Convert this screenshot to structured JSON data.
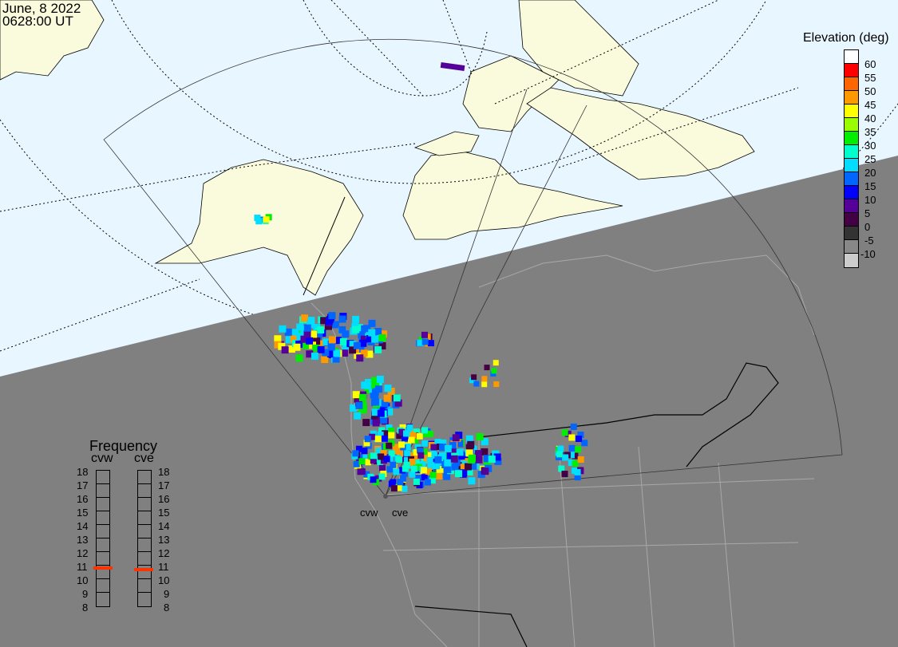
{
  "header": {
    "date": "June, 8 2022",
    "time": "0628:00 UT"
  },
  "legend": {
    "title": "Elevation (deg)",
    "colors": [
      "#ffffff",
      "#ff0000",
      "#ff6600",
      "#ff9900",
      "#ffff00",
      "#99ff00",
      "#00ee00",
      "#00ffcc",
      "#00ddff",
      "#0066ff",
      "#0000ff",
      "#550099",
      "#440044",
      "#333333",
      "#888888",
      "#cccccc"
    ],
    "labels": [
      "60",
      "55",
      "50",
      "45",
      "40",
      "35",
      "30",
      "25",
      "20",
      "15",
      "10",
      "5",
      "0",
      "-5",
      "-10"
    ]
  },
  "frequency": {
    "title": "Frequency",
    "radars": [
      {
        "name": "cvw",
        "value_mhz": 10.8
      },
      {
        "name": "cve",
        "value_mhz": 10.7
      }
    ],
    "ticks": [
      "18",
      "17",
      "16",
      "15",
      "14",
      "13",
      "12",
      "11",
      "10",
      "9",
      "8"
    ],
    "range_mhz": [
      8,
      18
    ],
    "marker_color": "#ff3300"
  },
  "sites": [
    "cvw",
    "cve"
  ],
  "colors": {
    "ocean": "#e8f6ff",
    "land_day": "#fafadc",
    "night": "#808080"
  }
}
